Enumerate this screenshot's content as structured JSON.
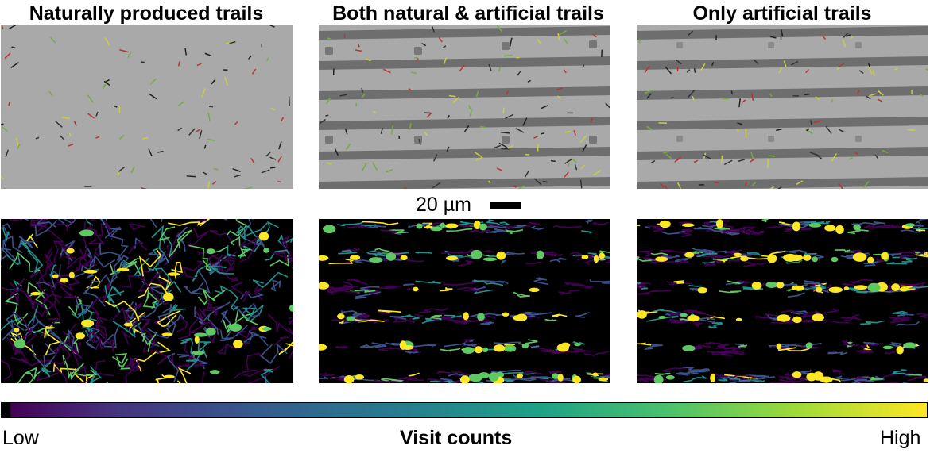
{
  "panels": [
    {
      "title": "Naturally produced trails"
    },
    {
      "title": "Both natural & artificial trails"
    },
    {
      "title": "Only artificial trails"
    }
  ],
  "scale_bar": {
    "label": "20 µm"
  },
  "colorbar": {
    "low_label": "Low",
    "title": "Visit counts",
    "high_label": "High",
    "colormap": "viridis"
  },
  "colors": {
    "micro_background": "#a9a9a9",
    "artificial_stripe": "#6e6e6e",
    "heat_background": "#000000"
  }
}
